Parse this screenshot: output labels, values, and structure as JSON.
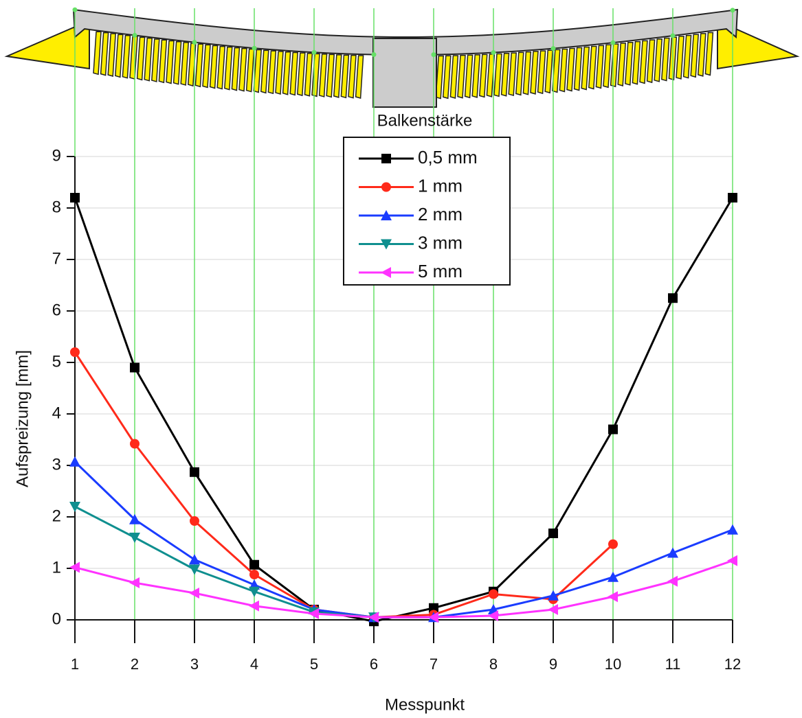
{
  "chart_data": {
    "type": "line",
    "x_label": "Messpunkt",
    "y_label": "Aufspreizung [mm]",
    "legend_title": "Balkenstärke",
    "x": [
      1,
      2,
      3,
      4,
      5,
      6,
      7,
      8,
      9,
      10,
      11,
      12
    ],
    "series": [
      {
        "name": "0,5 mm",
        "color": "#000000",
        "marker": "square",
        "values": [
          8.2,
          4.9,
          2.87,
          1.07,
          0.2,
          -0.03,
          0.23,
          0.55,
          1.68,
          3.7,
          6.25,
          8.2
        ]
      },
      {
        "name": "1 mm",
        "color": "#ff2a1a",
        "marker": "circle",
        "values": [
          5.2,
          3.42,
          1.92,
          0.88,
          0.2,
          0.05,
          0.1,
          0.5,
          0.4,
          1.47,
          null,
          null
        ]
      },
      {
        "name": "2 mm",
        "color": "#1a3cff",
        "marker": "triangle-up",
        "values": [
          3.07,
          1.95,
          1.17,
          0.68,
          0.2,
          0.05,
          0.05,
          0.2,
          0.47,
          0.83,
          1.3,
          1.75
        ]
      },
      {
        "name": "3 mm",
        "color": "#0f8f8f",
        "marker": "triangle-down",
        "values": [
          2.2,
          1.6,
          0.98,
          0.55,
          0.15,
          0.05,
          null,
          null,
          null,
          null,
          null,
          null
        ]
      },
      {
        "name": "5 mm",
        "color": "#ff33ff",
        "marker": "triangle-left",
        "values": [
          1.02,
          0.72,
          0.52,
          0.27,
          0.12,
          0.05,
          0.05,
          0.08,
          0.2,
          0.45,
          0.75,
          1.15
        ]
      }
    ],
    "xlim": [
      1,
      12
    ],
    "xticks": [
      1,
      2,
      3,
      4,
      5,
      6,
      7,
      8,
      9,
      10,
      11,
      12
    ],
    "ylim": [
      0,
      9
    ],
    "yticks": [
      0,
      1,
      2,
      3,
      4,
      5,
      6,
      7,
      8,
      9
    ],
    "grid": true,
    "grid_color": "#e4e4e4",
    "xgrid_color": "#66e066",
    "legend": "upper center"
  }
}
